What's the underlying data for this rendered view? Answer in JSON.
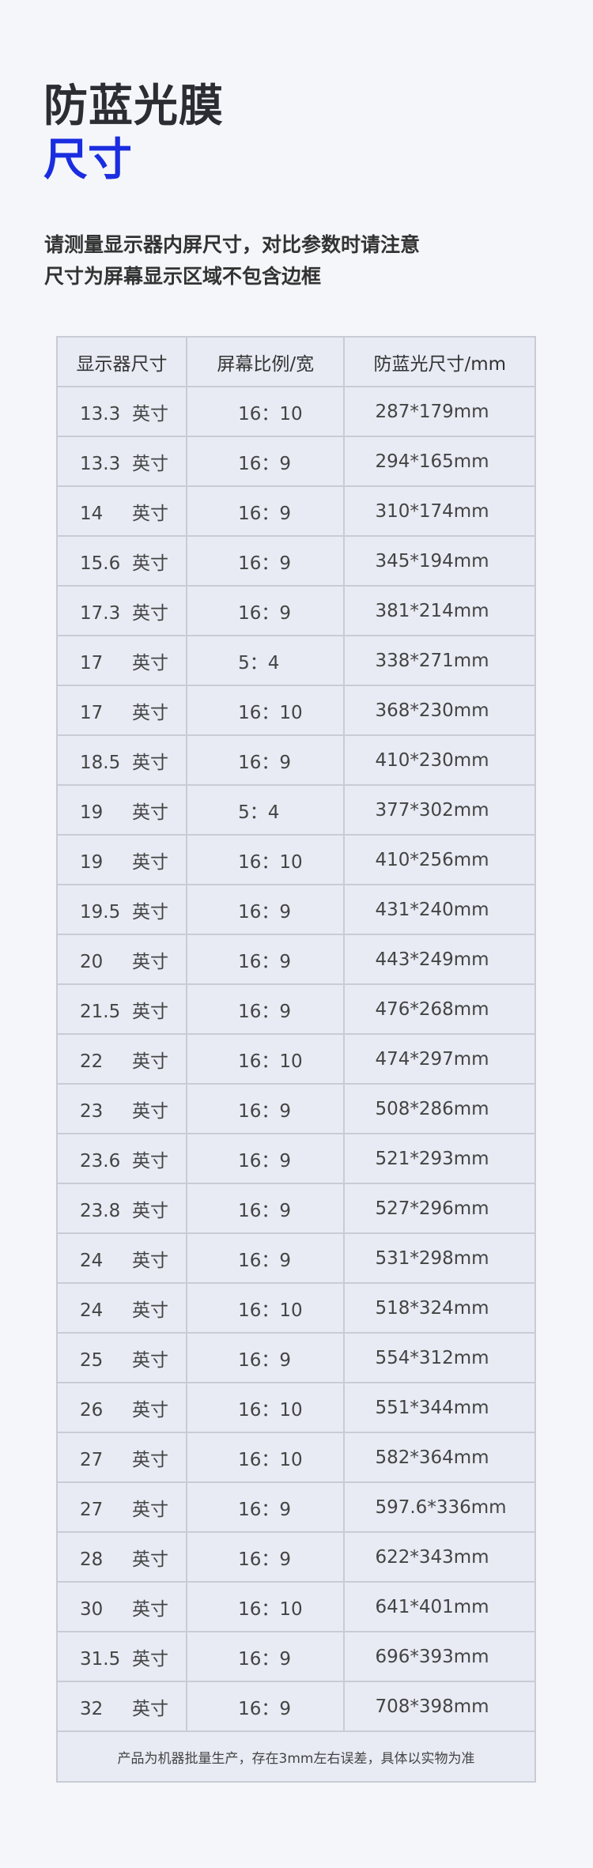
{
  "heading": {
    "line1": "防蓝光膜",
    "line2": "尺寸",
    "accent_color": "#1a2de0"
  },
  "description": {
    "line1": "请测量显示器内屏尺寸，对比参数时请注意",
    "line2": "尺寸为屏幕显示区域不包含边框"
  },
  "table": {
    "headers": [
      "显示器尺寸",
      "屏幕比例/宽",
      "防蓝光尺寸/mm"
    ],
    "unit": "英寸",
    "rows": [
      {
        "size": "13.3",
        "ratio": "16：10",
        "film": "287*179mm"
      },
      {
        "size": "13.3",
        "ratio": "16：9",
        "film": "294*165mm"
      },
      {
        "size": "14",
        "ratio": "16：9",
        "film": "310*174mm"
      },
      {
        "size": "15.6",
        "ratio": "16：9",
        "film": "345*194mm"
      },
      {
        "size": "17.3",
        "ratio": "16：9",
        "film": "381*214mm"
      },
      {
        "size": "17",
        "ratio": "5：4",
        "film": "338*271mm"
      },
      {
        "size": "17",
        "ratio": "16：10",
        "film": "368*230mm"
      },
      {
        "size": "18.5",
        "ratio": "16：9",
        "film": "410*230mm"
      },
      {
        "size": "19",
        "ratio": "5：4",
        "film": "377*302mm"
      },
      {
        "size": "19",
        "ratio": "16：10",
        "film": "410*256mm"
      },
      {
        "size": "19.5",
        "ratio": "16：9",
        "film": "431*240mm"
      },
      {
        "size": "20",
        "ratio": "16：9",
        "film": "443*249mm"
      },
      {
        "size": "21.5",
        "ratio": "16：9",
        "film": "476*268mm"
      },
      {
        "size": "22",
        "ratio": "16：10",
        "film": "474*297mm"
      },
      {
        "size": "23",
        "ratio": "16：9",
        "film": "508*286mm"
      },
      {
        "size": "23.6",
        "ratio": "16：9",
        "film": "521*293mm"
      },
      {
        "size": "23.8",
        "ratio": "16：9",
        "film": "527*296mm"
      },
      {
        "size": "24",
        "ratio": "16：9",
        "film": "531*298mm"
      },
      {
        "size": "24",
        "ratio": "16：10",
        "film": "518*324mm"
      },
      {
        "size": "25",
        "ratio": "16：9",
        "film": "554*312mm"
      },
      {
        "size": "26",
        "ratio": "16：10",
        "film": "551*344mm"
      },
      {
        "size": "27",
        "ratio": "16：10",
        "film": "582*364mm"
      },
      {
        "size": "27",
        "ratio": "16：9",
        "film": "597.6*336mm"
      },
      {
        "size": "28",
        "ratio": "16：9",
        "film": "622*343mm"
      },
      {
        "size": "30",
        "ratio": "16：10",
        "film": "641*401mm"
      },
      {
        "size": "31.5",
        "ratio": "16：9",
        "film": "696*393mm"
      },
      {
        "size": "32",
        "ratio": "16：9",
        "film": "708*398mm"
      }
    ],
    "note": "产品为机器批量生产，存在3mm左右误差，具体以实物为准"
  }
}
